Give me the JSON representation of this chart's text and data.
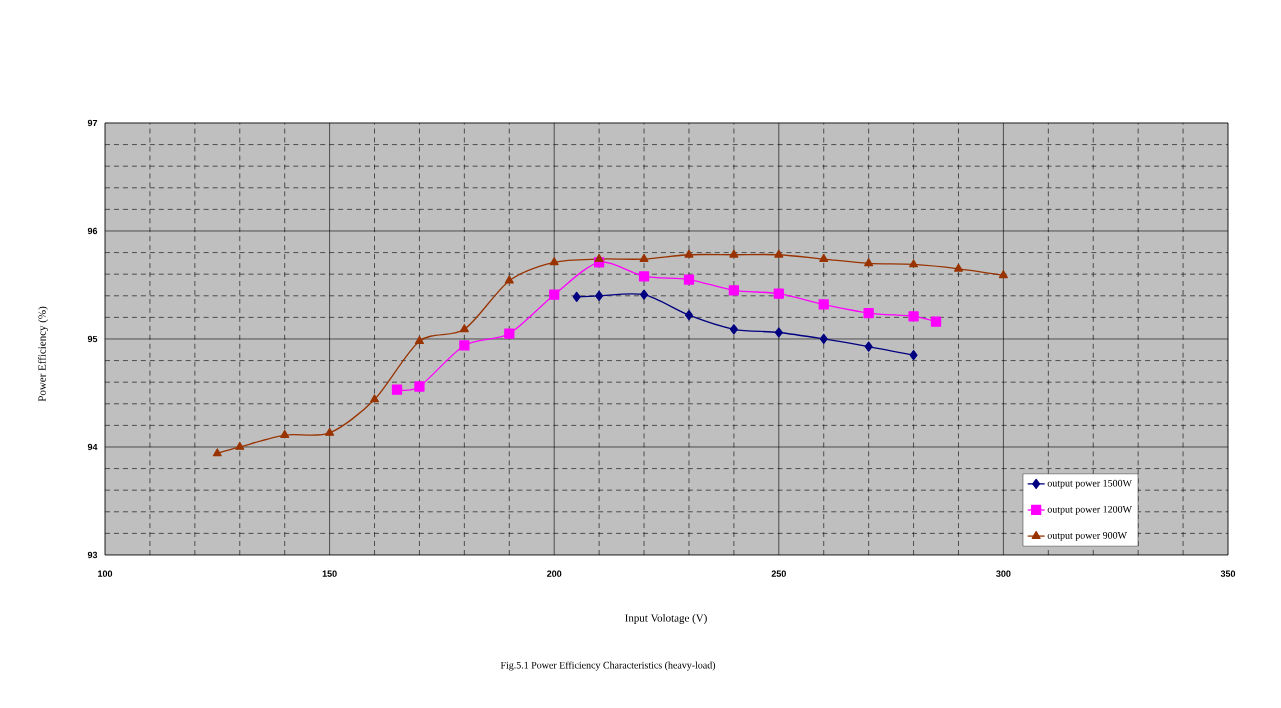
{
  "chart_data": {
    "type": "line",
    "title": "Fig.5.1  Power  Efficiency  Characteristics (heavy-load)",
    "xlabel": "Input  Volotage  (V)",
    "ylabel": "Power  Efficiency  (%)",
    "xlim": [
      100,
      350
    ],
    "xticks": [
      100,
      150,
      200,
      250,
      300,
      350
    ],
    "ylim": [
      93,
      97
    ],
    "yticks": [
      93,
      94,
      95,
      96,
      97
    ],
    "grid": true,
    "legend": "bottom right",
    "line_style": "solid",
    "series": [
      {
        "name": "output  power 1500W",
        "color": "#000080",
        "marker": "diamond",
        "x": [
          205,
          210,
          220,
          230,
          240,
          250,
          260,
          270,
          280
        ],
        "values": [
          95.39,
          95.4,
          95.41,
          95.22,
          95.09,
          95.06,
          95.0,
          94.93,
          94.85
        ]
      },
      {
        "name": "output  power 1200W",
        "color": "#ff00ff",
        "marker": "square",
        "x": [
          165,
          170,
          180,
          190,
          200,
          210,
          220,
          230,
          240,
          250,
          260,
          270,
          280,
          285
        ],
        "values": [
          94.53,
          94.56,
          94.94,
          95.05,
          95.41,
          95.71,
          95.58,
          95.55,
          95.45,
          95.42,
          95.32,
          95.24,
          95.21,
          95.16
        ]
      },
      {
        "name": "output  power   900W",
        "color": "#993300",
        "marker": "triangle",
        "x": [
          125,
          130,
          140,
          150,
          160,
          170,
          180,
          190,
          200,
          210,
          220,
          230,
          240,
          250,
          260,
          270,
          280,
          290,
          300
        ],
        "values": [
          93.94,
          94.0,
          94.11,
          94.13,
          94.44,
          94.98,
          95.09,
          95.54,
          95.71,
          95.74,
          95.74,
          95.78,
          95.78,
          95.78,
          95.74,
          95.7,
          95.69,
          95.65,
          95.59
        ]
      }
    ]
  }
}
